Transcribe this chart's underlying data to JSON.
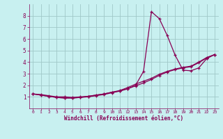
{
  "xlabel": "Windchill (Refroidissement éolien,°C)",
  "background_color": "#c8f0f0",
  "grid_color": "#a0c8c8",
  "line_color": "#880055",
  "xlim": [
    -0.5,
    23.5
  ],
  "ylim": [
    0,
    9
  ],
  "xticks": [
    0,
    1,
    2,
    3,
    4,
    5,
    6,
    7,
    8,
    9,
    10,
    11,
    12,
    13,
    14,
    15,
    16,
    17,
    18,
    19,
    20,
    21,
    22,
    23
  ],
  "yticks": [
    1,
    2,
    3,
    4,
    5,
    6,
    7,
    8
  ],
  "line1_x": [
    0,
    1,
    2,
    3,
    4,
    5,
    6,
    7,
    8,
    9,
    10,
    11,
    12,
    13,
    14,
    15,
    16,
    17,
    18,
    19,
    20,
    21,
    22,
    23
  ],
  "line1_y": [
    1.25,
    1.2,
    1.1,
    1.0,
    1.0,
    0.95,
    1.0,
    1.05,
    1.15,
    1.25,
    1.4,
    1.5,
    1.7,
    2.0,
    3.2,
    8.35,
    7.75,
    6.3,
    4.6,
    3.3,
    3.25,
    3.5,
    4.3,
    4.65
  ],
  "line2_x": [
    0,
    1,
    2,
    3,
    4,
    5,
    6,
    7,
    8,
    9,
    10,
    11,
    12,
    13,
    14,
    15,
    16,
    17,
    18,
    19,
    20,
    21,
    22,
    23
  ],
  "line2_y": [
    1.25,
    1.15,
    1.05,
    0.95,
    0.9,
    0.9,
    0.95,
    1.0,
    1.1,
    1.2,
    1.35,
    1.5,
    1.7,
    1.95,
    2.2,
    2.5,
    2.85,
    3.15,
    3.35,
    3.5,
    3.6,
    3.95,
    4.35,
    4.65
  ],
  "line3_x": [
    0,
    1,
    2,
    3,
    4,
    5,
    6,
    7,
    8,
    9,
    10,
    11,
    12,
    13,
    14,
    15,
    16,
    17,
    18,
    19,
    20,
    21,
    22,
    23
  ],
  "line3_y": [
    1.25,
    1.15,
    1.05,
    0.95,
    0.9,
    0.9,
    0.95,
    1.05,
    1.15,
    1.25,
    1.4,
    1.55,
    1.8,
    2.1,
    2.35,
    2.6,
    2.95,
    3.2,
    3.4,
    3.55,
    3.65,
    4.0,
    4.4,
    4.65
  ]
}
